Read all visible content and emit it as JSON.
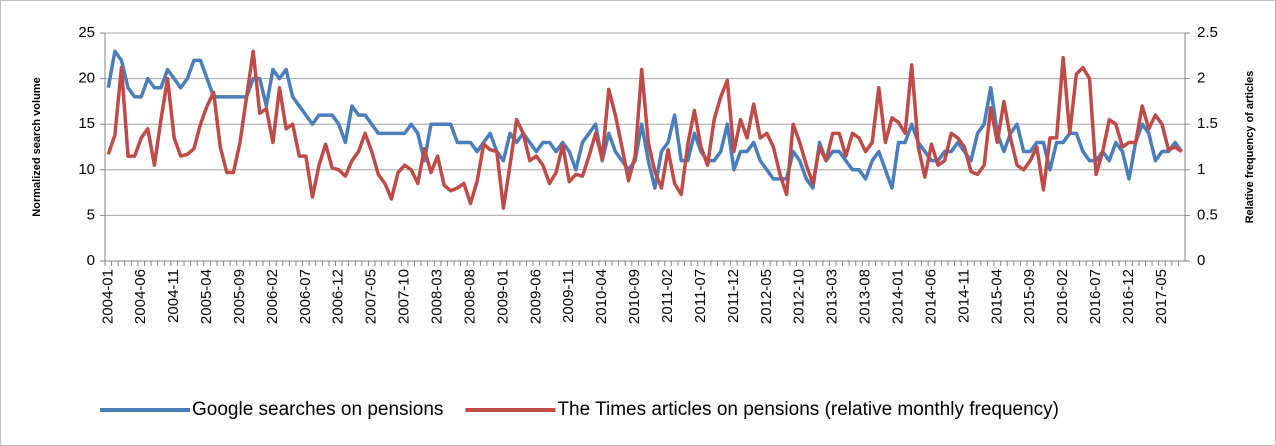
{
  "chart_data": {
    "type": "line",
    "ylabel": "Normalized search volume",
    "y2label": "Relative frequency of articles",
    "categories": [
      "2004-01",
      null,
      null,
      null,
      null,
      "2004-06",
      null,
      null,
      null,
      null,
      "2004-11",
      null,
      null,
      null,
      null,
      "2005-04",
      null,
      null,
      null,
      null,
      "2005-09",
      null,
      null,
      null,
      null,
      "2006-02",
      null,
      null,
      null,
      null,
      "2006-07",
      null,
      null,
      null,
      null,
      "2006-12",
      null,
      null,
      null,
      null,
      "2007-05",
      null,
      null,
      null,
      null,
      "2007-10",
      null,
      null,
      null,
      null,
      "2008-03",
      null,
      null,
      null,
      null,
      "2008-08",
      null,
      null,
      null,
      null,
      "2009-01",
      null,
      null,
      null,
      null,
      "2009-06",
      null,
      null,
      null,
      null,
      "2009-11",
      null,
      null,
      null,
      null,
      "2010-04",
      null,
      null,
      null,
      null,
      "2010-09",
      null,
      null,
      null,
      null,
      "2011-02",
      null,
      null,
      null,
      null,
      "2011-07",
      null,
      null,
      null,
      null,
      "2011-12",
      null,
      null,
      null,
      null,
      "2012-05",
      null,
      null,
      null,
      null,
      "2012-10",
      null,
      null,
      null,
      null,
      "2013-03",
      null,
      null,
      null,
      null,
      "2013-08",
      null,
      null,
      null,
      null,
      "2014-01",
      null,
      null,
      null,
      null,
      "2014-06",
      null,
      null,
      null,
      null,
      "2014-11",
      null,
      null,
      null,
      null,
      "2015-04",
      null,
      null,
      null,
      null,
      "2015-09",
      null,
      null,
      null,
      null,
      "2016-02",
      null,
      null,
      null,
      null,
      "2016-07",
      null,
      null,
      null,
      null,
      "2016-12",
      null,
      null,
      null,
      null,
      "2017-05",
      null,
      null,
      null
    ],
    "series": [
      {
        "name": "Google searches on pensions",
        "color": "#4a7ebb",
        "values": [
          19,
          23,
          22,
          19,
          18,
          18,
          20,
          19,
          19,
          21,
          20,
          19,
          20,
          22,
          22,
          20,
          18,
          18,
          18,
          18,
          18,
          18,
          20,
          20,
          17,
          21,
          20,
          21,
          18,
          17,
          16,
          15,
          16,
          16,
          16,
          15,
          13,
          17,
          16,
          16,
          15,
          14,
          14,
          14,
          14,
          14,
          15,
          14,
          11,
          15,
          15,
          15,
          15,
          13,
          13,
          13,
          12,
          13,
          14,
          12,
          11,
          14,
          13,
          14,
          13,
          12,
          13,
          13,
          12,
          13,
          12,
          10,
          13,
          14,
          15,
          11,
          14,
          12,
          11,
          10,
          11,
          15,
          11,
          8,
          12,
          13,
          16,
          11,
          11,
          14,
          12,
          11,
          11,
          12,
          15,
          10,
          12,
          12,
          13,
          11,
          10,
          9,
          9,
          9,
          12,
          11,
          9,
          8,
          13,
          11,
          12,
          12,
          11,
          10,
          10,
          9,
          11,
          12,
          10,
          8,
          13,
          13,
          15,
          13,
          12,
          11,
          11,
          12,
          12,
          13,
          12,
          11,
          14,
          15,
          19,
          14,
          12,
          14,
          15,
          12,
          12,
          13,
          13,
          10,
          13,
          13,
          14,
          14,
          12,
          11,
          11,
          12,
          11,
          13,
          12,
          9,
          13,
          15,
          14,
          11,
          12,
          12,
          13,
          12
        ]
      },
      {
        "name": "The Times articles on pensions (relative monthly frequency)",
        "color": "#be4b48",
        "axis": "y2",
        "values": [
          1.17,
          1.38,
          2.12,
          1.15,
          1.15,
          1.35,
          1.45,
          1.05,
          1.55,
          2.0,
          1.35,
          1.15,
          1.17,
          1.23,
          1.5,
          1.7,
          1.85,
          1.25,
          0.97,
          0.97,
          1.3,
          1.8,
          2.3,
          1.62,
          1.67,
          1.3,
          1.9,
          1.45,
          1.5,
          1.15,
          1.15,
          0.7,
          1.05,
          1.28,
          1.02,
          1.0,
          0.93,
          1.1,
          1.2,
          1.4,
          1.2,
          0.95,
          0.85,
          0.68,
          0.97,
          1.05,
          1.0,
          0.85,
          1.23,
          0.97,
          1.15,
          0.83,
          0.77,
          0.8,
          0.85,
          0.63,
          0.87,
          1.28,
          1.22,
          1.2,
          0.58,
          1.05,
          1.55,
          1.4,
          1.1,
          1.15,
          1.05,
          0.85,
          0.97,
          1.27,
          0.87,
          0.95,
          0.93,
          1.15,
          1.4,
          1.12,
          1.88,
          1.6,
          1.25,
          0.88,
          1.15,
          2.1,
          1.3,
          0.98,
          0.8,
          1.22,
          0.85,
          0.73,
          1.28,
          1.65,
          1.25,
          1.05,
          1.55,
          1.8,
          1.98,
          1.2,
          1.55,
          1.35,
          1.72,
          1.35,
          1.4,
          1.25,
          0.95,
          0.73,
          1.5,
          1.3,
          1.05,
          0.85,
          1.25,
          1.1,
          1.4,
          1.4,
          1.15,
          1.4,
          1.35,
          1.2,
          1.3,
          1.9,
          1.3,
          1.57,
          1.52,
          1.4,
          2.15,
          1.25,
          0.92,
          1.28,
          1.05,
          1.1,
          1.4,
          1.35,
          1.25,
          0.98,
          0.95,
          1.05,
          1.68,
          1.3,
          1.75,
          1.35,
          1.05,
          1.0,
          1.1,
          1.25,
          0.78,
          1.35,
          1.35,
          2.23,
          1.4,
          2.05,
          2.12,
          2.0,
          0.95,
          1.2,
          1.55,
          1.5,
          1.25,
          1.3,
          1.3,
          1.7,
          1.45,
          1.6,
          1.5,
          1.22,
          1.25,
          1.2
        ]
      }
    ],
    "ylim": [
      0,
      25
    ],
    "yticks": [
      0,
      5,
      10,
      15,
      20,
      25
    ],
    "y2lim": [
      0,
      2.5
    ],
    "y2ticks": [
      0,
      0.5,
      1,
      1.5,
      2,
      2.5
    ],
    "grid": true,
    "legend": "bottom"
  }
}
